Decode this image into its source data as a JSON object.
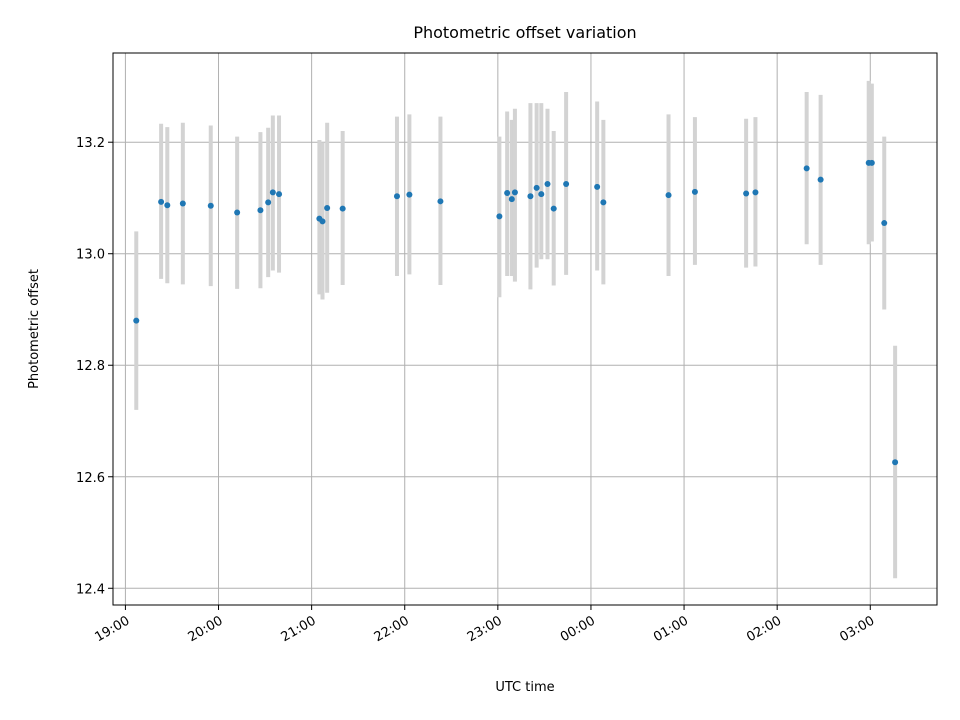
{
  "chart_data": {
    "type": "scatter",
    "title": "Photometric offset variation",
    "xlabel": "UTC time",
    "ylabel": "Photometric offset",
    "grid": true,
    "xlim": [
      "18:52",
      "03:43"
    ],
    "ylim": [
      12.37,
      13.36
    ],
    "x_ticks": [
      "19:00",
      "20:00",
      "21:00",
      "22:00",
      "23:00",
      "00:00",
      "01:00",
      "02:00",
      "03:00"
    ],
    "y_ticks": [
      "12.4",
      "12.6",
      "12.8",
      "13.0",
      "13.2"
    ],
    "error_color": "#d3d3d3",
    "marker_color": "#1f77b4",
    "points": [
      {
        "x": "19:07",
        "y": 12.88,
        "lo": 12.72,
        "hi": 13.04
      },
      {
        "x": "19:23",
        "y": 13.093,
        "lo": 12.955,
        "hi": 13.233
      },
      {
        "x": "19:27",
        "y": 13.087,
        "lo": 12.947,
        "hi": 13.227
      },
      {
        "x": "19:37",
        "y": 13.09,
        "lo": 12.945,
        "hi": 13.235
      },
      {
        "x": "19:55",
        "y": 13.086,
        "lo": 12.942,
        "hi": 13.23
      },
      {
        "x": "20:12",
        "y": 13.074,
        "lo": 12.937,
        "hi": 13.21
      },
      {
        "x": "20:27",
        "y": 13.078,
        "lo": 12.938,
        "hi": 13.218
      },
      {
        "x": "20:32",
        "y": 13.092,
        "lo": 12.958,
        "hi": 13.226
      },
      {
        "x": "20:35",
        "y": 13.11,
        "lo": 12.97,
        "hi": 13.248
      },
      {
        "x": "20:39",
        "y": 13.107,
        "lo": 12.966,
        "hi": 13.248
      },
      {
        "x": "21:05",
        "y": 13.063,
        "lo": 12.927,
        "hi": 13.204
      },
      {
        "x": "21:07",
        "y": 13.058,
        "lo": 12.918,
        "hi": 13.2
      },
      {
        "x": "21:10",
        "y": 13.082,
        "lo": 12.93,
        "hi": 13.235
      },
      {
        "x": "21:20",
        "y": 13.081,
        "lo": 12.944,
        "hi": 13.22
      },
      {
        "x": "21:55",
        "y": 13.103,
        "lo": 12.96,
        "hi": 13.246
      },
      {
        "x": "22:03",
        "y": 13.106,
        "lo": 12.963,
        "hi": 13.25
      },
      {
        "x": "22:23",
        "y": 13.094,
        "lo": 12.944,
        "hi": 13.246
      },
      {
        "x": "23:01",
        "y": 13.067,
        "lo": 12.922,
        "hi": 13.21
      },
      {
        "x": "23:06",
        "y": 13.109,
        "lo": 12.96,
        "hi": 13.255
      },
      {
        "x": "23:09",
        "y": 13.098,
        "lo": 12.96,
        "hi": 13.24
      },
      {
        "x": "23:11",
        "y": 13.11,
        "lo": 12.95,
        "hi": 13.26
      },
      {
        "x": "23:21",
        "y": 13.103,
        "lo": 12.936,
        "hi": 13.27
      },
      {
        "x": "23:25",
        "y": 13.118,
        "lo": 12.975,
        "hi": 13.27
      },
      {
        "x": "23:28",
        "y": 13.107,
        "lo": 12.99,
        "hi": 13.27
      },
      {
        "x": "23:32",
        "y": 13.125,
        "lo": 12.99,
        "hi": 13.26
      },
      {
        "x": "23:36",
        "y": 13.081,
        "lo": 12.943,
        "hi": 13.22
      },
      {
        "x": "23:44",
        "y": 13.125,
        "lo": 12.962,
        "hi": 13.29
      },
      {
        "x": "00:04",
        "y": 13.12,
        "lo": 12.97,
        "hi": 13.273
      },
      {
        "x": "00:08",
        "y": 13.092,
        "lo": 12.945,
        "hi": 13.24
      },
      {
        "x": "00:50",
        "y": 13.105,
        "lo": 12.96,
        "hi": 13.25
      },
      {
        "x": "01:07",
        "y": 13.111,
        "lo": 12.98,
        "hi": 13.245
      },
      {
        "x": "01:40",
        "y": 13.108,
        "lo": 12.975,
        "hi": 13.242
      },
      {
        "x": "01:46",
        "y": 13.11,
        "lo": 12.977,
        "hi": 13.245
      },
      {
        "x": "02:19",
        "y": 13.153,
        "lo": 13.017,
        "hi": 13.29
      },
      {
        "x": "02:28",
        "y": 13.133,
        "lo": 12.98,
        "hi": 13.285
      },
      {
        "x": "02:59",
        "y": 13.163,
        "lo": 13.017,
        "hi": 13.31
      },
      {
        "x": "03:01",
        "y": 13.163,
        "lo": 13.022,
        "hi": 13.305
      },
      {
        "x": "03:09",
        "y": 13.055,
        "lo": 12.9,
        "hi": 13.21
      },
      {
        "x": "03:16",
        "y": 12.626,
        "lo": 12.418,
        "hi": 12.835
      }
    ]
  }
}
